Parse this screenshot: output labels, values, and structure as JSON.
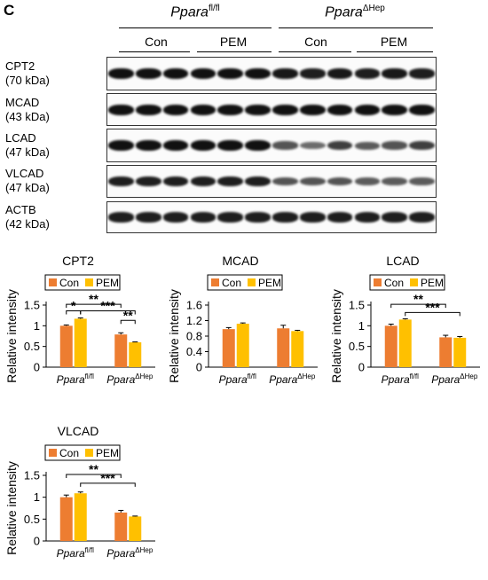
{
  "panel_letter": "C",
  "header": {
    "genotypes": [
      {
        "name": "Ppara",
        "sup": "fl/fl"
      },
      {
        "name": "Ppara",
        "sup": "ΔHep"
      }
    ],
    "groups": [
      "Con",
      "PEM",
      "Con",
      "PEM"
    ]
  },
  "blots": [
    {
      "protein": "CPT2",
      "kda": "(70 kDa)",
      "intensity": [
        1,
        1,
        1,
        1,
        1,
        1,
        0.95,
        0.9,
        0.95,
        0.9,
        0.95,
        0.9
      ]
    },
    {
      "protein": "MCAD",
      "kda": "(43 kDa)",
      "intensity": [
        1,
        1,
        1,
        1,
        1,
        1,
        1,
        1,
        1,
        1,
        1,
        1
      ]
    },
    {
      "protein": "LCAD",
      "kda": "(47 kDa)",
      "intensity": [
        1,
        1,
        1,
        1,
        1,
        1,
        0.55,
        0.4,
        0.7,
        0.5,
        0.55,
        0.7
      ]
    },
    {
      "protein": "VLCAD",
      "kda": "(47 kDa)",
      "intensity": [
        0.9,
        0.9,
        0.9,
        0.9,
        0.9,
        0.9,
        0.55,
        0.55,
        0.55,
        0.5,
        0.5,
        0.5
      ]
    },
    {
      "protein": "ACTB",
      "kda": "(42 kDa)",
      "intensity": [
        0.9,
        0.9,
        0.9,
        0.9,
        0.9,
        0.9,
        0.9,
        0.9,
        0.9,
        0.9,
        0.9,
        0.9
      ]
    }
  ],
  "colors": {
    "con": "#ED7D31",
    "pem": "#FFC000"
  },
  "chart_data": [
    {
      "type": "bar",
      "title": "CPT2",
      "ylabel": "Relative intensity",
      "categories": [
        {
          "name": "Ppara",
          "sup": "fl/fl"
        },
        {
          "name": "Ppara",
          "sup": "ΔHep"
        }
      ],
      "ylim": [
        0,
        1.5
      ],
      "yticks": [
        "0",
        "0.5",
        "1",
        "1.5"
      ],
      "series": [
        {
          "name": "Con",
          "values": [
            1.0,
            0.79
          ],
          "errors": [
            0.02,
            0.04
          ]
        },
        {
          "name": "PEM",
          "values": [
            1.17,
            0.6
          ],
          "errors": [
            0.02,
            0.01
          ]
        }
      ],
      "annotations": [
        "*",
        "**",
        "***",
        "**"
      ]
    },
    {
      "type": "bar",
      "title": "MCAD",
      "ylabel": "Relative intensity",
      "categories": [
        {
          "name": "Ppara",
          "sup": "fl/fl"
        },
        {
          "name": "Ppara",
          "sup": "ΔHep"
        }
      ],
      "ylim": [
        0,
        1.6
      ],
      "yticks": [
        "0",
        "0.4",
        "0.8",
        "1.2",
        "1.6"
      ],
      "series": [
        {
          "name": "Con",
          "values": [
            0.98,
            1.0
          ],
          "errors": [
            0.04,
            0.08
          ]
        },
        {
          "name": "PEM",
          "values": [
            1.12,
            0.93
          ],
          "errors": [
            0.02,
            0.02
          ]
        }
      ],
      "annotations": []
    },
    {
      "type": "bar",
      "title": "LCAD",
      "ylabel": "Relative intensity",
      "categories": [
        {
          "name": "Ppara",
          "sup": "fl/fl"
        },
        {
          "name": "Ppara",
          "sup": "ΔHep"
        }
      ],
      "ylim": [
        0,
        1.5
      ],
      "yticks": [
        "0",
        "0.5",
        "1",
        "1.5"
      ],
      "series": [
        {
          "name": "Con",
          "values": [
            1.0,
            0.72
          ],
          "errors": [
            0.04,
            0.05
          ]
        },
        {
          "name": "PEM",
          "values": [
            1.15,
            0.71
          ],
          "errors": [
            0.02,
            0.03
          ]
        }
      ],
      "annotations": [
        "**",
        "***"
      ]
    },
    {
      "type": "bar",
      "title": "VLCAD",
      "ylabel": "Relative intensity",
      "categories": [
        {
          "name": "Ppara",
          "sup": "fl/fl"
        },
        {
          "name": "Ppara",
          "sup": "ΔHep"
        }
      ],
      "ylim": [
        0,
        1.5
      ],
      "yticks": [
        "0",
        "0.5",
        "1",
        "1.5"
      ],
      "series": [
        {
          "name": "Con",
          "values": [
            1.0,
            0.65
          ],
          "errors": [
            0.05,
            0.05
          ]
        },
        {
          "name": "PEM",
          "values": [
            1.09,
            0.56
          ],
          "errors": [
            0.03,
            0.01
          ]
        }
      ],
      "annotations": [
        "**",
        "***"
      ]
    }
  ]
}
